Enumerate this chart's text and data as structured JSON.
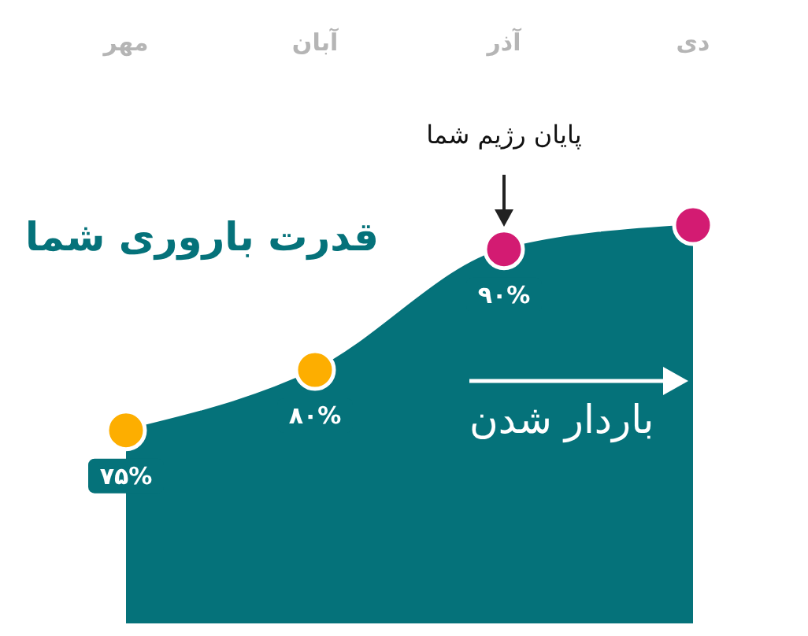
{
  "chart_data": {
    "type": "area",
    "categories": [
      "مهر",
      "آبان",
      "آذر",
      "دی"
    ],
    "series": [
      {
        "color": "#05727a",
        "values": [
          75,
          80,
          90,
          92
        ],
        "colors": [
          "#fdae00",
          "#fdae00",
          "#d31b72",
          "#d31b72"
        ],
        "value_labels": [
          "۷۵%",
          "۸۰%",
          "۹۰%",
          null
        ]
      }
    ],
    "annotations": [
      "قدرت باروری شما",
      "پایان رژیم شما",
      "باردار شدن"
    ],
    "marker": "circle",
    "grid": false,
    "legend": false
  }
}
